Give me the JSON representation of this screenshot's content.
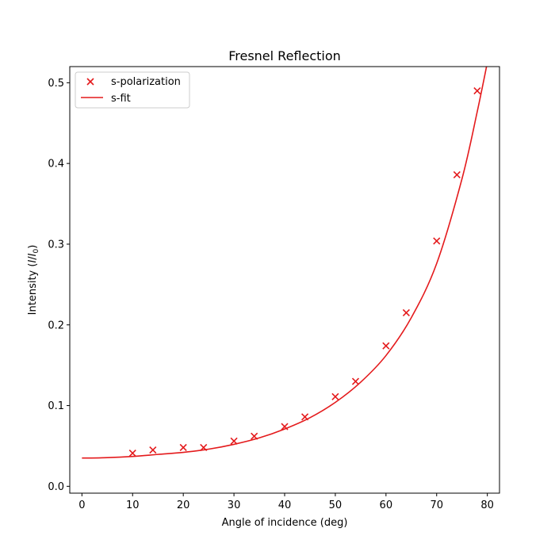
{
  "chart_data": {
    "type": "scatter",
    "title": "Fresnel Reflection",
    "xlabel": "Angle of incidence (deg)",
    "ylabel_main": "Intensity (",
    "ylabel_I": "I",
    "ylabel_sep": "/",
    "ylabel_I0": "I",
    "ylabel_sub": "0",
    "ylabel_close": ")",
    "xlim": [
      -2.4,
      82.4
    ],
    "ylim": [
      -0.0085,
      0.52
    ],
    "xticks": [
      0,
      10,
      20,
      30,
      40,
      50,
      60,
      70,
      80
    ],
    "xtick_labels": [
      "0",
      "10",
      "20",
      "30",
      "40",
      "50",
      "60",
      "70",
      "80"
    ],
    "yticks": [
      0.0,
      0.1,
      0.2,
      0.3,
      0.4,
      0.5
    ],
    "ytick_labels": [
      "0.0",
      "0.1",
      "0.2",
      "0.3",
      "0.4",
      "0.5"
    ],
    "color": "#e41a1c",
    "legend_position": "upper-left",
    "grid": false,
    "series": [
      {
        "name": "s-polarization",
        "kind": "scatter",
        "marker": "x",
        "x": [
          10,
          14,
          20,
          24,
          30,
          34,
          40,
          44,
          50,
          54,
          60,
          64,
          70,
          74,
          78
        ],
        "y": [
          0.041,
          0.045,
          0.048,
          0.048,
          0.056,
          0.062,
          0.074,
          0.086,
          0.111,
          0.13,
          0.174,
          0.215,
          0.304,
          0.386,
          0.49
        ]
      },
      {
        "name": "s-fit",
        "kind": "line",
        "x": [
          0,
          5,
          10,
          15,
          20,
          25,
          30,
          35,
          40,
          45,
          50,
          55,
          60,
          65,
          70,
          75,
          78,
          80
        ],
        "y": [
          0.035,
          0.0355,
          0.037,
          0.0395,
          0.042,
          0.046,
          0.052,
          0.06,
          0.071,
          0.085,
          0.104,
          0.129,
          0.162,
          0.209,
          0.276,
          0.381,
          0.464,
          0.525
        ]
      }
    ]
  }
}
